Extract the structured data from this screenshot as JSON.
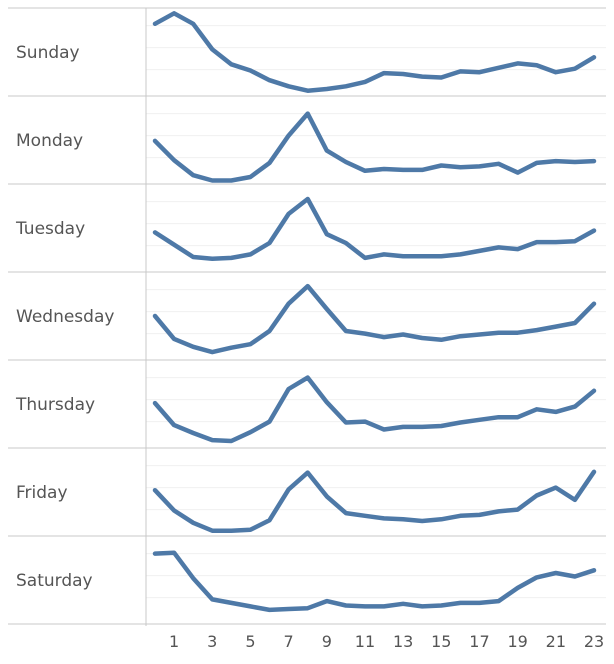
{
  "chart_data": {
    "type": "line",
    "layout": "small-multiples",
    "line_color": "#4e79a7",
    "grid": true,
    "x": [
      0,
      1,
      2,
      3,
      4,
      5,
      6,
      7,
      8,
      9,
      10,
      11,
      12,
      13,
      14,
      15,
      16,
      17,
      18,
      19,
      20,
      21,
      22,
      23
    ],
    "x_tick_labels": [
      "1",
      "3",
      "5",
      "7",
      "9",
      "11",
      "13",
      "15",
      "17",
      "19",
      "21",
      "23"
    ],
    "x_tick_values": [
      1,
      3,
      5,
      7,
      9,
      11,
      13,
      15,
      17,
      19,
      21,
      23
    ],
    "series": [
      {
        "name": "Sunday",
        "values": [
          72,
          84,
          72,
          43,
          26,
          19,
          8,
          1,
          -4,
          -2,
          1,
          6,
          16,
          15,
          12,
          11,
          18,
          17,
          22,
          27,
          25,
          17,
          21,
          34
        ]
      },
      {
        "name": "Monday",
        "values": [
          39,
          17,
          0,
          -6,
          -6,
          -2,
          14,
          45,
          70,
          28,
          15,
          5,
          7,
          6,
          6,
          11,
          9,
          10,
          13,
          3,
          14,
          16,
          15,
          16
        ]
      },
      {
        "name": "Tuesday",
        "values": [
          35,
          21,
          7,
          5,
          6,
          10,
          23,
          56,
          73,
          33,
          23,
          6,
          10,
          8,
          8,
          8,
          10,
          14,
          18,
          16,
          24,
          24,
          25,
          37
        ]
      },
      {
        "name": "Wednesday",
        "values": [
          40,
          14,
          5,
          -1,
          4,
          8,
          23,
          54,
          74,
          48,
          23,
          20,
          16,
          19,
          15,
          13,
          17,
          19,
          21,
          21,
          24,
          28,
          32,
          54
        ]
      },
      {
        "name": "Thursday",
        "values": [
          41,
          16,
          7,
          -1,
          -2,
          8,
          20,
          57,
          70,
          42,
          19,
          20,
          11,
          14,
          14,
          15,
          19,
          22,
          25,
          25,
          34,
          31,
          37,
          55
        ]
      },
      {
        "name": "Friday",
        "values": [
          42,
          19,
          5,
          -4,
          -4,
          -3,
          8,
          43,
          62,
          35,
          16,
          13,
          10,
          9,
          7,
          9,
          13,
          14,
          18,
          20,
          36,
          45,
          31,
          63
        ]
      },
      {
        "name": "Saturday",
        "values": [
          70,
          71,
          42,
          18,
          14,
          10,
          6,
          7,
          8,
          16,
          11,
          10,
          10,
          13,
          10,
          11,
          14,
          14,
          16,
          31,
          43,
          48,
          44,
          51
        ]
      }
    ]
  }
}
